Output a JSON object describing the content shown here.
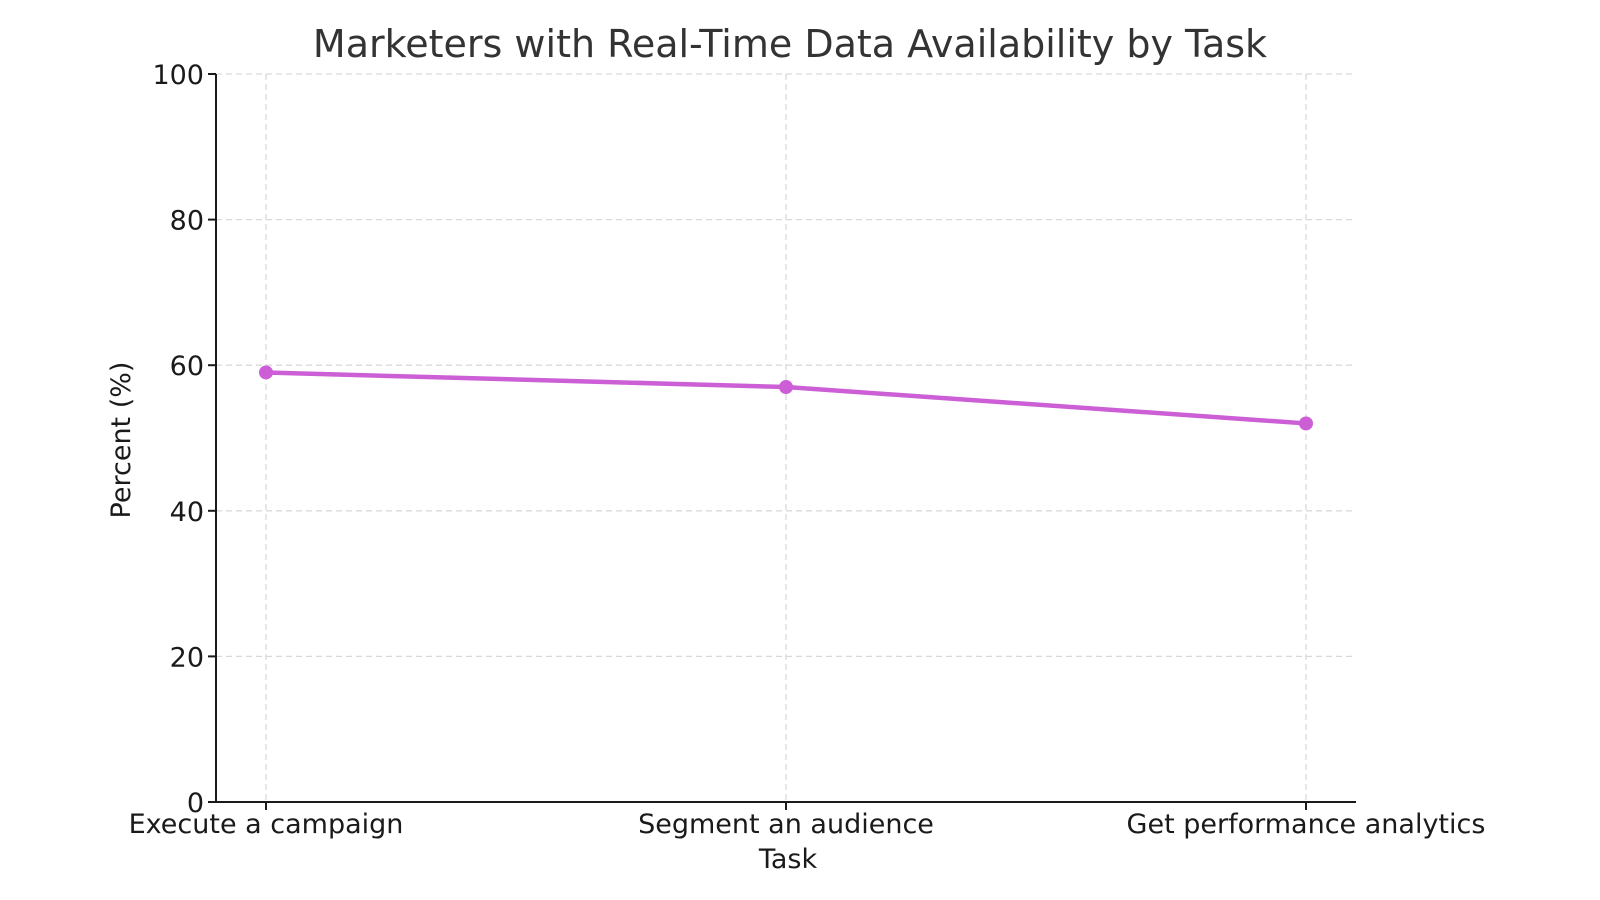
{
  "chart_data": {
    "type": "line",
    "title": "Marketers with Real-Time Data Availability by Task",
    "xlabel": "Task",
    "ylabel": "Percent (%)",
    "categories": [
      "Execute a campaign",
      "Segment an audience",
      "Get performance analytics"
    ],
    "series": [
      {
        "values": [
          59,
          57,
          52
        ],
        "color": "#cc5ed6"
      }
    ],
    "ylim": [
      0,
      100
    ],
    "yticks": [
      0,
      20,
      40,
      60,
      80,
      100
    ],
    "grid": true,
    "legend": "none"
  }
}
